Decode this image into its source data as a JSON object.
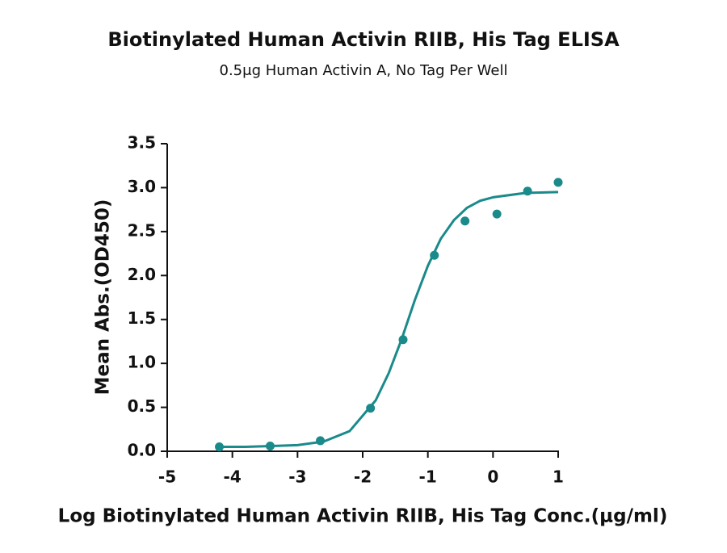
{
  "chart_data": {
    "type": "scatter",
    "title": "Biotinylated Human Activin RIIB, His Tag ELISA",
    "subtitle": "0.5μg Human Activin A, No Tag Per Well",
    "x_label": "Log Biotinylated Human Activin RIIB, His Tag Conc.(μg/ml)",
    "y_label": "Mean Abs.(OD450)",
    "xlim": [
      -5,
      1
    ],
    "ylim": [
      0,
      3.5
    ],
    "xticks": [
      -5,
      -4,
      -3,
      -2,
      -1,
      0,
      1
    ],
    "yticks": [
      {
        "value": 0,
        "label": "0.0"
      },
      {
        "value": 0.5,
        "label": "0.5"
      },
      {
        "value": 1,
        "label": "1.0"
      },
      {
        "value": 1.5,
        "label": "1.5"
      },
      {
        "value": 2,
        "label": "2.0"
      },
      {
        "value": 2.5,
        "label": "2.5"
      },
      {
        "value": 3,
        "label": "3.0"
      },
      {
        "value": 3.5,
        "label": "3.5"
      }
    ],
    "series": [
      {
        "mode": "markers",
        "color": "#1a8a8a",
        "x": [
          -4.2,
          -3.42,
          -2.65,
          -1.88,
          -1.38,
          -0.9,
          -0.43,
          0.06,
          0.53,
          1.0
        ],
        "values": [
          0.05,
          0.06,
          0.12,
          0.49,
          1.27,
          2.23,
          2.62,
          2.7,
          2.96,
          3.06
        ]
      },
      {
        "mode": "line",
        "color": "#1a8a8a",
        "x": [
          -4.2,
          -3.8,
          -3.4,
          -3.0,
          -2.6,
          -2.2,
          -1.8,
          -1.6,
          -1.4,
          -1.2,
          -1.0,
          -0.8,
          -0.6,
          -0.4,
          -0.2,
          0,
          0.5,
          1.0
        ],
        "values": [
          0.05,
          0.05,
          0.06,
          0.07,
          0.11,
          0.23,
          0.58,
          0.89,
          1.28,
          1.72,
          2.11,
          2.42,
          2.63,
          2.77,
          2.85,
          2.89,
          2.94,
          2.95
        ]
      }
    ]
  }
}
